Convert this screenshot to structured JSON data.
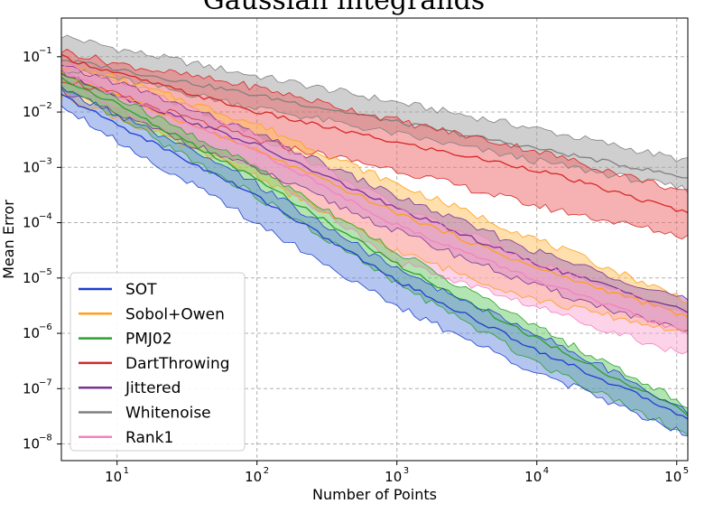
{
  "chart_data": {
    "type": "line",
    "title": "Gaussian integrands",
    "xlabel": "Number of Points",
    "ylabel": "Mean Error",
    "xscale": "log",
    "yscale": "log",
    "xlim": [
      4,
      120000
    ],
    "ylim": [
      5e-09,
      0.5
    ],
    "grid": true,
    "legend_position": "bottom-left",
    "x_ticks": [
      {
        "value": 10,
        "base": "10",
        "exp": "1"
      },
      {
        "value": 100,
        "base": "10",
        "exp": "2"
      },
      {
        "value": 1000,
        "base": "10",
        "exp": "3"
      },
      {
        "value": 10000,
        "base": "10",
        "exp": "4"
      },
      {
        "value": 100000,
        "base": "10",
        "exp": "5"
      }
    ],
    "y_ticks": [
      {
        "value": 1e-08,
        "base": "10",
        "exp": "−8"
      },
      {
        "value": 1e-07,
        "base": "10",
        "exp": "−7"
      },
      {
        "value": 1e-06,
        "base": "10",
        "exp": "−6"
      },
      {
        "value": 1e-05,
        "base": "10",
        "exp": "−5"
      },
      {
        "value": 0.0001,
        "base": "10",
        "exp": "−4"
      },
      {
        "value": 0.001,
        "base": "10",
        "exp": "−3"
      },
      {
        "value": 0.01,
        "base": "10",
        "exp": "−2"
      },
      {
        "value": 0.1,
        "base": "10",
        "exp": "−1"
      }
    ],
    "series": [
      {
        "name": "Whitenoise",
        "color": "#808080",
        "fill": "#a0a0a0",
        "x": [
          4,
          10,
          100,
          1000,
          10000,
          120000
        ],
        "mean": [
          0.09,
          0.06,
          0.02,
          0.0066,
          0.0022,
          0.00065
        ],
        "lower": [
          0.06,
          0.04,
          0.012,
          0.004,
          0.0013,
          0.0004
        ],
        "upper": [
          0.24,
          0.14,
          0.045,
          0.015,
          0.005,
          0.0013
        ]
      },
      {
        "name": "DartThrowing",
        "color": "#d62728",
        "fill": "#ee6666",
        "x": [
          4,
          10,
          100,
          1000,
          10000,
          120000
        ],
        "mean": [
          0.1,
          0.05,
          0.01,
          0.0028,
          0.0009,
          0.00015
        ],
        "lower": [
          0.04,
          0.02,
          0.003,
          0.0009,
          0.0002,
          5.5e-05
        ],
        "upper": [
          0.13,
          0.075,
          0.028,
          0.007,
          0.002,
          0.00035
        ]
      },
      {
        "name": "Sobol+Owen",
        "color": "#ff9f1c",
        "fill": "#ffbf5a",
        "x": [
          4,
          10,
          100,
          1000,
          10000,
          120000
        ],
        "mean": [
          0.05,
          0.02,
          0.002,
          0.00015,
          1.5e-05,
          2e-06
        ],
        "lower": [
          0.02,
          0.008,
          0.0007,
          3e-05,
          4e-06,
          1e-06
        ],
        "upper": [
          0.07,
          0.04,
          0.006,
          0.0005,
          5e-05,
          4e-06
        ]
      },
      {
        "name": "Jittered",
        "color": "#7b3294",
        "fill": "#a571c0",
        "x": [
          4,
          10,
          100,
          1000,
          10000,
          120000
        ],
        "mean": [
          0.05,
          0.02,
          0.0025,
          0.00018,
          1.8e-05,
          2.5e-06
        ],
        "lower": [
          0.025,
          0.009,
          0.0009,
          7e-05,
          7e-06,
          1e-06
        ],
        "upper": [
          0.065,
          0.035,
          0.004,
          0.0003,
          3e-05,
          4e-06
        ]
      },
      {
        "name": "Rank1",
        "color": "#f781bf",
        "fill": "#f9a8d4",
        "x": [
          4,
          10,
          100,
          1000,
          10000,
          120000
        ],
        "mean": [
          0.06,
          0.02,
          0.002,
          9e-05,
          9e-06,
          1e-06
        ],
        "lower": [
          0.04,
          0.012,
          0.001,
          2e-05,
          3e-06,
          4e-07
        ],
        "upper": [
          0.07,
          0.04,
          0.004,
          0.0002,
          2e-05,
          2e-06
        ]
      },
      {
        "name": "PMJ02",
        "color": "#2ca02c",
        "fill": "#66cc66",
        "x": [
          4,
          10,
          100,
          1000,
          10000,
          120000
        ],
        "mean": [
          0.04,
          0.014,
          0.0006,
          1.8e-05,
          8e-07,
          3.5e-08
        ],
        "lower": [
          0.025,
          0.008,
          0.0003,
          8e-06,
          3e-07,
          1.5e-08
        ],
        "upper": [
          0.05,
          0.018,
          0.001,
          3e-05,
          1.3e-06,
          5e-08
        ]
      },
      {
        "name": "SOT",
        "color": "#1f3fd0",
        "fill": "#6a8ce0",
        "x": [
          4,
          10,
          100,
          1000,
          10000,
          120000
        ],
        "mean": [
          0.02,
          0.006,
          0.0003,
          9e-06,
          5e-07,
          3e-08
        ],
        "lower": [
          0.014,
          0.003,
          0.0001,
          3e-06,
          2e-07,
          1.5e-08
        ],
        "upper": [
          0.026,
          0.009,
          0.0005,
          1.4e-05,
          1e-06,
          4e-08
        ]
      }
    ],
    "legend_order": [
      "SOT",
      "Sobol+Owen",
      "PMJ02",
      "DartThrowing",
      "Jittered",
      "Whitenoise",
      "Rank1"
    ]
  }
}
